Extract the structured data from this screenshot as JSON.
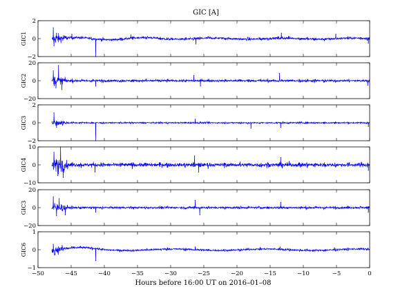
{
  "chart_data": {
    "type": "line",
    "title": "GIC [A]",
    "xlabel": "Hours before  16:00 UT on 2016–01–08",
    "xlim": [
      -50,
      0
    ],
    "xticks": [
      -50,
      -45,
      -40,
      -35,
      -30,
      -25,
      -20,
      -15,
      -10,
      -5,
      0
    ],
    "line_color": "#0000ff",
    "panels": [
      {
        "ylabel": "GIC1",
        "ylim": [
          -2,
          2
        ],
        "yticks": [
          -2,
          0,
          2
        ],
        "baseline_noise": 0.1,
        "events": [
          {
            "x": -47.7,
            "y": 1.2
          },
          {
            "x": -47.6,
            "y": -0.8
          },
          {
            "x": -47.2,
            "y": 0.6
          },
          {
            "x": -44.9,
            "y": 0.5
          },
          {
            "x": -41.3,
            "y": -2.0
          },
          {
            "x": -36.0,
            "y": 0.4
          },
          {
            "x": -26.2,
            "y": -0.6
          },
          {
            "x": -13.3,
            "y": 0.6
          },
          {
            "x": -5.1,
            "y": 0.5
          },
          {
            "x": -0.2,
            "y": -0.5
          }
        ]
      },
      {
        "ylabel": "GIC2",
        "ylim": [
          -20,
          20
        ],
        "yticks": [
          -20,
          0,
          20
        ],
        "baseline_noise": 1.0,
        "events": [
          {
            "x": -47.7,
            "y": 11
          },
          {
            "x": -47.3,
            "y": -8
          },
          {
            "x": -46.9,
            "y": 17
          },
          {
            "x": -46.4,
            "y": -10
          },
          {
            "x": -41.3,
            "y": -6
          },
          {
            "x": -26.5,
            "y": 6
          },
          {
            "x": -25.5,
            "y": -6
          },
          {
            "x": -13.6,
            "y": 8
          },
          {
            "x": -0.3,
            "y": -5
          }
        ]
      },
      {
        "ylabel": "GIC3",
        "ylim": [
          -2,
          2
        ],
        "yticks": [
          -2,
          0,
          2
        ],
        "baseline_noise": 0.06,
        "events": [
          {
            "x": -47.6,
            "y": 1.1
          },
          {
            "x": -47.2,
            "y": -0.5
          },
          {
            "x": -41.3,
            "y": -2.0
          },
          {
            "x": -26.3,
            "y": 0.4
          },
          {
            "x": -17.9,
            "y": -0.6
          },
          {
            "x": -13.4,
            "y": -0.5
          },
          {
            "x": -0.2,
            "y": -0.4
          }
        ]
      },
      {
        "ylabel": "GIC4",
        "ylim": [
          -10,
          10
        ],
        "yticks": [
          -10,
          0,
          10
        ],
        "baseline_noise": 0.8,
        "events": [
          {
            "x": -47.6,
            "y": 7
          },
          {
            "x": -47.0,
            "y": -6
          },
          {
            "x": -46.6,
            "y": 10
          },
          {
            "x": -46.2,
            "y": -7
          },
          {
            "x": -41.4,
            "y": -4
          },
          {
            "x": -26.4,
            "y": 5
          },
          {
            "x": -25.8,
            "y": -4
          },
          {
            "x": -13.4,
            "y": 4
          },
          {
            "x": -0.2,
            "y": -3
          }
        ]
      },
      {
        "ylabel": "GIC3",
        "ylim": [
          -20,
          20
        ],
        "yticks": [
          -20,
          0,
          20
        ],
        "baseline_noise": 0.9,
        "events": [
          {
            "x": -47.7,
            "y": 12
          },
          {
            "x": -47.2,
            "y": -9
          },
          {
            "x": -46.8,
            "y": 10
          },
          {
            "x": -45.9,
            "y": -8
          },
          {
            "x": -41.3,
            "y": -5
          },
          {
            "x": -26.3,
            "y": 8
          },
          {
            "x": -25.6,
            "y": -8
          },
          {
            "x": -13.4,
            "y": 6
          },
          {
            "x": -0.2,
            "y": -5
          }
        ]
      },
      {
        "ylabel": "GIC6",
        "ylim": [
          -1,
          1
        ],
        "yticks": [
          -1,
          0,
          1
        ],
        "baseline_noise": 0.04,
        "events": [
          {
            "x": -47.7,
            "y": 0.3
          },
          {
            "x": -47.5,
            "y": -0.3
          },
          {
            "x": -41.3,
            "y": -0.6
          },
          {
            "x": -26.3,
            "y": 0.15
          },
          {
            "x": -13.5,
            "y": 0.15
          },
          {
            "x": -5.3,
            "y": 0.1
          }
        ]
      }
    ]
  }
}
